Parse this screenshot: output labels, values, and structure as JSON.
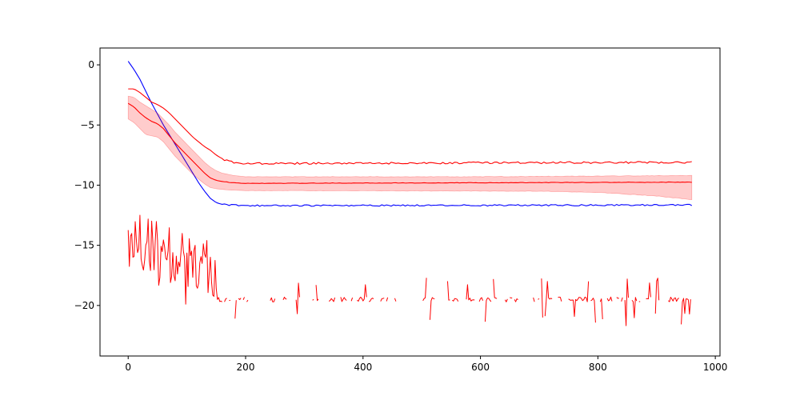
{
  "chart_data": {
    "type": "line",
    "title": "",
    "xlabel": "",
    "ylabel": "",
    "xlim": [
      -48,
      1008
    ],
    "ylim": [
      -24.2,
      1.4
    ],
    "x_ticks": [
      0,
      200,
      400,
      600,
      800,
      1000
    ],
    "x_tick_labels": [
      "0",
      "200",
      "400",
      "600",
      "800",
      "1000"
    ],
    "y_ticks": [
      0,
      -5,
      -10,
      -15,
      -20
    ],
    "y_tick_labels": [
      "0",
      "−5",
      "−10",
      "−15",
      "−20"
    ],
    "grid": false,
    "legend": null,
    "colors": {
      "blue_line": "#0000ff",
      "red_line": "#ff0000",
      "band_fill": "#ff0000",
      "band_opacity": 0.2
    },
    "series": [
      {
        "kind": "line",
        "color": "#0000ff",
        "noise": 0.06,
        "points": [
          [
            0,
            0.3
          ],
          [
            10,
            -0.4
          ],
          [
            20,
            -1.2
          ],
          [
            30,
            -2.2
          ],
          [
            40,
            -3.2
          ],
          [
            50,
            -4.1
          ],
          [
            60,
            -5.0
          ],
          [
            70,
            -5.8
          ],
          [
            80,
            -6.6
          ],
          [
            90,
            -7.4
          ],
          [
            100,
            -8.2
          ],
          [
            110,
            -9.0
          ],
          [
            120,
            -9.8
          ],
          [
            130,
            -10.5
          ],
          [
            140,
            -11.1
          ],
          [
            150,
            -11.45
          ],
          [
            160,
            -11.6
          ],
          [
            170,
            -11.65
          ],
          [
            200,
            -11.7
          ],
          [
            960,
            -11.65
          ]
        ]
      },
      {
        "kind": "line",
        "color": "#ff0000",
        "noise": 0.08,
        "points": [
          [
            0,
            -2.0
          ],
          [
            10,
            -2.0
          ],
          [
            20,
            -2.3
          ],
          [
            30,
            -2.7
          ],
          [
            40,
            -3.1
          ],
          [
            50,
            -3.3
          ],
          [
            60,
            -3.6
          ],
          [
            70,
            -4.0
          ],
          [
            80,
            -4.5
          ],
          [
            90,
            -5.0
          ],
          [
            100,
            -5.5
          ],
          [
            110,
            -6.0
          ],
          [
            120,
            -6.4
          ],
          [
            130,
            -6.8
          ],
          [
            140,
            -7.1
          ],
          [
            150,
            -7.5
          ],
          [
            160,
            -7.8
          ],
          [
            170,
            -8.0
          ],
          [
            185,
            -8.15
          ],
          [
            200,
            -8.2
          ],
          [
            960,
            -8.1
          ]
        ]
      },
      {
        "kind": "band",
        "color": "#ff0000",
        "mean": [
          [
            0,
            -3.2
          ],
          [
            10,
            -3.5
          ],
          [
            20,
            -4.0
          ],
          [
            30,
            -4.4
          ],
          [
            40,
            -4.7
          ],
          [
            50,
            -4.9
          ],
          [
            60,
            -5.3
          ],
          [
            70,
            -5.9
          ],
          [
            80,
            -6.5
          ],
          [
            90,
            -7.0
          ],
          [
            100,
            -7.5
          ],
          [
            110,
            -8.0
          ],
          [
            120,
            -8.5
          ],
          [
            130,
            -9.0
          ],
          [
            140,
            -9.4
          ],
          [
            150,
            -9.6
          ],
          [
            160,
            -9.7
          ],
          [
            180,
            -9.8
          ],
          [
            200,
            -9.85
          ],
          [
            960,
            -9.75
          ]
        ],
        "lower": [
          [
            0,
            -4.5
          ],
          [
            10,
            -4.8
          ],
          [
            20,
            -5.3
          ],
          [
            30,
            -5.8
          ],
          [
            40,
            -5.9
          ],
          [
            50,
            -6.0
          ],
          [
            60,
            -6.4
          ],
          [
            70,
            -7.0
          ],
          [
            80,
            -7.6
          ],
          [
            90,
            -8.1
          ],
          [
            100,
            -8.6
          ],
          [
            110,
            -9.1
          ],
          [
            120,
            -9.5
          ],
          [
            130,
            -9.9
          ],
          [
            140,
            -10.2
          ],
          [
            150,
            -10.3
          ],
          [
            170,
            -10.4
          ],
          [
            200,
            -10.45
          ],
          [
            700,
            -10.5
          ],
          [
            800,
            -10.6
          ],
          [
            900,
            -10.9
          ],
          [
            960,
            -11.2
          ]
        ],
        "upper": [
          [
            0,
            -2.6
          ],
          [
            10,
            -2.7
          ],
          [
            20,
            -3.1
          ],
          [
            30,
            -3.4
          ],
          [
            40,
            -3.7
          ],
          [
            50,
            -4.0
          ],
          [
            60,
            -4.5
          ],
          [
            70,
            -5.0
          ],
          [
            80,
            -5.6
          ],
          [
            90,
            -6.1
          ],
          [
            100,
            -6.6
          ],
          [
            110,
            -7.1
          ],
          [
            120,
            -7.6
          ],
          [
            130,
            -8.1
          ],
          [
            140,
            -8.5
          ],
          [
            150,
            -8.8
          ],
          [
            160,
            -9.0
          ],
          [
            180,
            -9.2
          ],
          [
            200,
            -9.3
          ],
          [
            600,
            -9.3
          ],
          [
            960,
            -9.2
          ]
        ]
      },
      {
        "kind": "noisy",
        "color": "#ff0000",
        "x_start": 0,
        "x_end": 960,
        "dense_until": 150,
        "start_level": -14.5,
        "early_level": -17.0,
        "floor": -19.5,
        "spike_low": -21.8,
        "spike_high": -18.5,
        "early_spread": 2.4,
        "gap_ranges": [
          [
            210,
            240
          ],
          [
            325,
            340
          ],
          [
            460,
            500
          ],
          [
            530,
            540
          ],
          [
            665,
            680
          ],
          [
            905,
            915
          ]
        ]
      }
    ]
  }
}
